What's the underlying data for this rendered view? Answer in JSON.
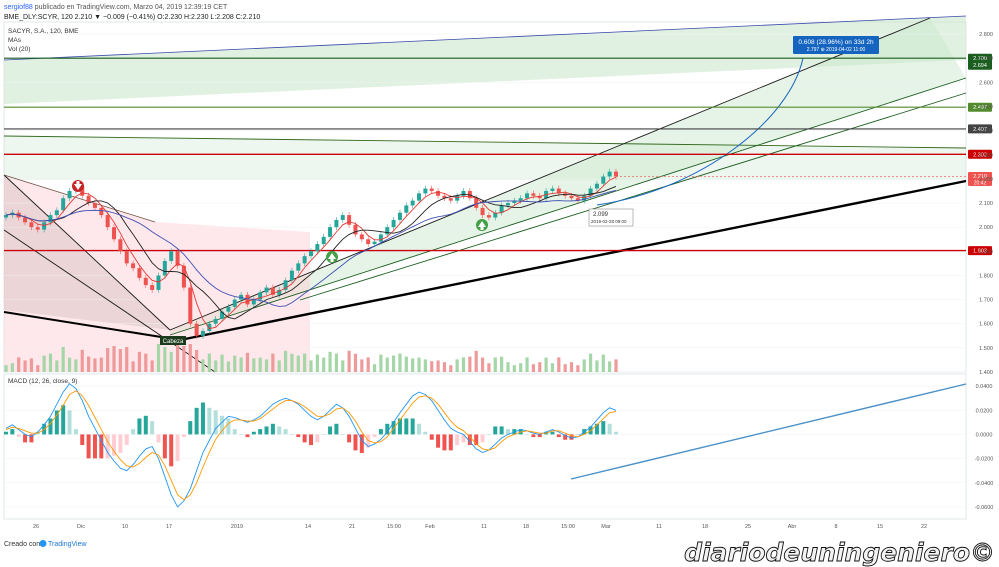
{
  "header": {
    "author": "sergiof88",
    "published": "publicado en TradingView.com, Marzo 04, 2019 12:39:19 CET",
    "ticker_line": "BME_DLY:SCYR, 120  2.210 ▼ −0.009 (−0.41%) O:2.230 H:2.230 L:2.208 C:2.210"
  },
  "legend": {
    "title": "SACYR, S.A., 120, BME",
    "mas": "MAs",
    "vol": "Vol (20)"
  },
  "footer": {
    "created_with": "Creado con",
    "brand": "TradingView",
    "watermark": "diariodeuningeniero©"
  },
  "colors": {
    "up_candle": "#26a69a",
    "down_candle": "#ef5350",
    "support_line": "#cc0000",
    "resistance_line": "#1b5e20",
    "channel_fill": "#c8e6c9",
    "macd_line": "#2196f3",
    "signal_line": "#ff9800",
    "projection": "#1565c0"
  },
  "chart_data": [
    {
      "type": "candlestick",
      "name": "price",
      "x_ticks": [
        "26",
        "Dic",
        "10",
        "17",
        "2019",
        "14",
        "21",
        "15:00",
        "Feb",
        "11",
        "18",
        "15:00",
        "Mar",
        "11",
        "18",
        "25",
        "Abr",
        "8",
        "15",
        "22"
      ],
      "y_ticks": [
        "2.800",
        "2.700",
        "2.600",
        "2.500",
        "2.400",
        "2.300",
        "2.200",
        "2.100",
        "2.000",
        "1.900",
        "1.800",
        "1.700",
        "1.600",
        "1.500",
        "1.400"
      ],
      "ylim": [
        1.4,
        2.85
      ],
      "close_series": [
        2.05,
        2.06,
        2.04,
        2.02,
        2.0,
        1.99,
        2.02,
        2.05,
        2.07,
        2.12,
        2.15,
        2.17,
        2.13,
        2.1,
        2.08,
        2.05,
        2.0,
        1.95,
        1.9,
        1.85,
        1.83,
        1.79,
        1.76,
        1.74,
        1.8,
        1.86,
        1.9,
        1.84,
        1.75,
        1.6,
        1.55,
        1.57,
        1.6,
        1.62,
        1.65,
        1.67,
        1.7,
        1.72,
        1.68,
        1.7,
        1.73,
        1.75,
        1.72,
        1.74,
        1.78,
        1.82,
        1.85,
        1.88,
        1.9,
        1.93,
        1.96,
        2.0,
        2.03,
        2.05,
        2.01,
        1.97,
        1.95,
        1.93,
        1.94,
        1.97,
        2.0,
        2.03,
        2.06,
        2.09,
        2.11,
        2.14,
        2.16,
        2.15,
        2.13,
        2.12,
        2.11,
        2.13,
        2.15,
        2.12,
        2.08,
        2.05,
        2.04,
        2.06,
        2.09,
        2.1,
        2.11,
        2.12,
        2.14,
        2.13,
        2.12,
        2.15,
        2.16,
        2.14,
        2.13,
        2.12,
        2.11,
        2.13,
        2.16,
        2.18,
        2.21,
        2.23,
        2.21
      ],
      "last_price_label": "2.210",
      "countdown_label": "20:42",
      "levels": [
        {
          "label": "2.700",
          "value": 2.7,
          "color": "#1b5e20"
        },
        {
          "label": "2.694",
          "value": 2.694,
          "color": "#1b5e20"
        },
        {
          "label": "2.497",
          "value": 2.497,
          "color": "#558b2f"
        },
        {
          "label": "2.407",
          "value": 2.407,
          "color": "#424242"
        },
        {
          "label": "2.302",
          "value": 2.302,
          "color": "#cc0000"
        },
        {
          "label": "1.903",
          "value": 1.903,
          "color": "#cc0000"
        }
      ],
      "annotations": {
        "projection_box": "0.608 (28.96%) on 33d 2h",
        "projection_sub": "2.797  ⊕ 2019-04-02 11:00",
        "low_marker": "2.099",
        "low_date": "2019-02-28 09:00",
        "head_label": "Cabeza"
      }
    },
    {
      "type": "line",
      "name": "MACD (12, 26, close, 9)",
      "y_ticks": [
        "0.0400",
        "0.0200",
        "0.0000",
        "-0.0200",
        "-0.0400",
        "-0.0600"
      ],
      "ylim": [
        -0.07,
        0.05
      ],
      "macd_series": [
        0.005,
        0.008,
        0.004,
        0.0,
        -0.002,
        0.002,
        0.008,
        0.015,
        0.025,
        0.035,
        0.042,
        0.038,
        0.028,
        0.015,
        0.005,
        -0.005,
        -0.015,
        -0.022,
        -0.028,
        -0.03,
        -0.025,
        -0.018,
        -0.012,
        -0.01,
        -0.02,
        -0.035,
        -0.05,
        -0.06,
        -0.055,
        -0.045,
        -0.03,
        -0.015,
        -0.005,
        0.005,
        0.01,
        0.015,
        0.014,
        0.012,
        0.01,
        0.012,
        0.015,
        0.02,
        0.025,
        0.028,
        0.03,
        0.028,
        0.025,
        0.02,
        0.015,
        0.012,
        0.015,
        0.02,
        0.025,
        0.022,
        0.015,
        0.005,
        -0.005,
        -0.01,
        -0.008,
        -0.004,
        0.002,
        0.01,
        0.018,
        0.025,
        0.032,
        0.035,
        0.033,
        0.028,
        0.02,
        0.012,
        0.005,
        0.002,
        0.0,
        -0.006,
        -0.012,
        -0.015,
        -0.013,
        -0.008,
        -0.003,
        0.0,
        0.002,
        0.004,
        0.003,
        0.001,
        0.0,
        0.002,
        0.004,
        0.002,
        -0.001,
        -0.003,
        -0.002,
        0.002,
        0.006,
        0.012,
        0.018,
        0.022,
        0.02
      ],
      "signal_series": [
        0.004,
        0.006,
        0.005,
        0.003,
        0.001,
        0.001,
        0.004,
        0.009,
        0.016,
        0.024,
        0.033,
        0.036,
        0.032,
        0.024,
        0.014,
        0.004,
        -0.006,
        -0.014,
        -0.021,
        -0.026,
        -0.027,
        -0.024,
        -0.019,
        -0.015,
        -0.017,
        -0.026,
        -0.038,
        -0.05,
        -0.054,
        -0.05,
        -0.04,
        -0.027,
        -0.015,
        -0.004,
        0.003,
        0.009,
        0.012,
        0.012,
        0.011,
        0.011,
        0.013,
        0.017,
        0.021,
        0.025,
        0.028,
        0.028,
        0.026,
        0.023,
        0.019,
        0.015,
        0.015,
        0.017,
        0.021,
        0.022,
        0.018,
        0.011,
        0.002,
        -0.005,
        -0.007,
        -0.006,
        -0.002,
        0.005,
        0.012,
        0.019,
        0.026,
        0.031,
        0.032,
        0.03,
        0.025,
        0.018,
        0.011,
        0.006,
        0.003,
        -0.002,
        -0.008,
        -0.012,
        -0.013,
        -0.011,
        -0.006,
        -0.002,
        0.0,
        0.002,
        0.003,
        0.002,
        0.001,
        0.001,
        0.003,
        0.003,
        0.001,
        -0.001,
        -0.002,
        0.0,
        0.003,
        0.008,
        0.013,
        0.018,
        0.019
      ]
    }
  ]
}
